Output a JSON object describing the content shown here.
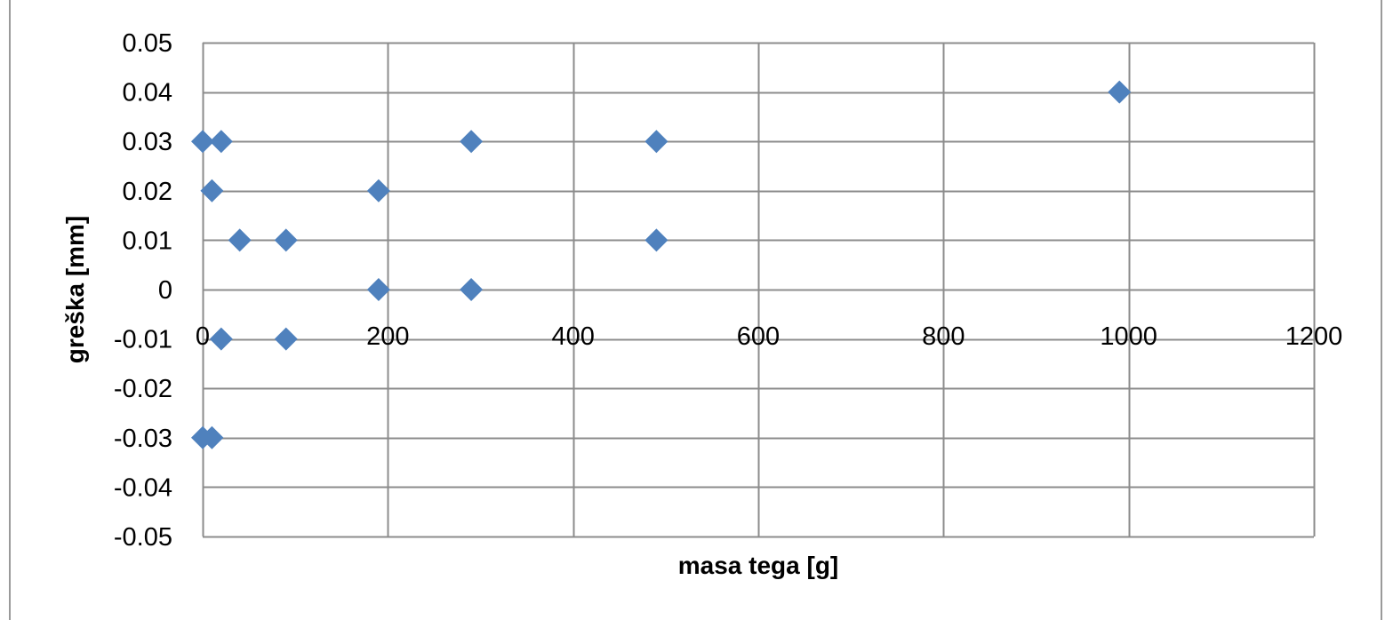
{
  "chart_data": {
    "type": "scatter",
    "xlabel": "masa tega [g]",
    "ylabel": "greška [mm]",
    "xlim": [
      0,
      1200
    ],
    "ylim": [
      -0.05,
      0.05
    ],
    "x_ticks": [
      0,
      200,
      400,
      600,
      800,
      1000,
      1200
    ],
    "y_ticks": [
      0.05,
      0.04,
      0.03,
      0.02,
      0.01,
      0,
      -0.01,
      -0.02,
      -0.03,
      -0.04,
      -0.05
    ],
    "x_tick_labels": [
      "0",
      "200",
      "400",
      "600",
      "800",
      "1000",
      "1200"
    ],
    "y_tick_labels": [
      "0.05",
      "0.04",
      "0.03",
      "0.02",
      "0.01",
      "0",
      "-0.01",
      "-0.02",
      "-0.03",
      "-0.04",
      "-0.05"
    ],
    "grid": true,
    "legend": "none",
    "marker_color": "#4f81bd",
    "marker_shape": "diamond",
    "points": [
      {
        "x": 0,
        "y": 0.03
      },
      {
        "x": 20,
        "y": 0.03
      },
      {
        "x": 10,
        "y": 0.02
      },
      {
        "x": 40,
        "y": 0.01
      },
      {
        "x": 90,
        "y": 0.01
      },
      {
        "x": 20,
        "y": -0.01
      },
      {
        "x": 90,
        "y": -0.01
      },
      {
        "x": 0,
        "y": -0.03
      },
      {
        "x": 10,
        "y": -0.03
      },
      {
        "x": 190,
        "y": 0.02
      },
      {
        "x": 190,
        "y": 0
      },
      {
        "x": 290,
        "y": 0.03
      },
      {
        "x": 290,
        "y": 0
      },
      {
        "x": 490,
        "y": 0.03
      },
      {
        "x": 490,
        "y": 0.01
      },
      {
        "x": 990,
        "y": 0.04
      }
    ]
  }
}
